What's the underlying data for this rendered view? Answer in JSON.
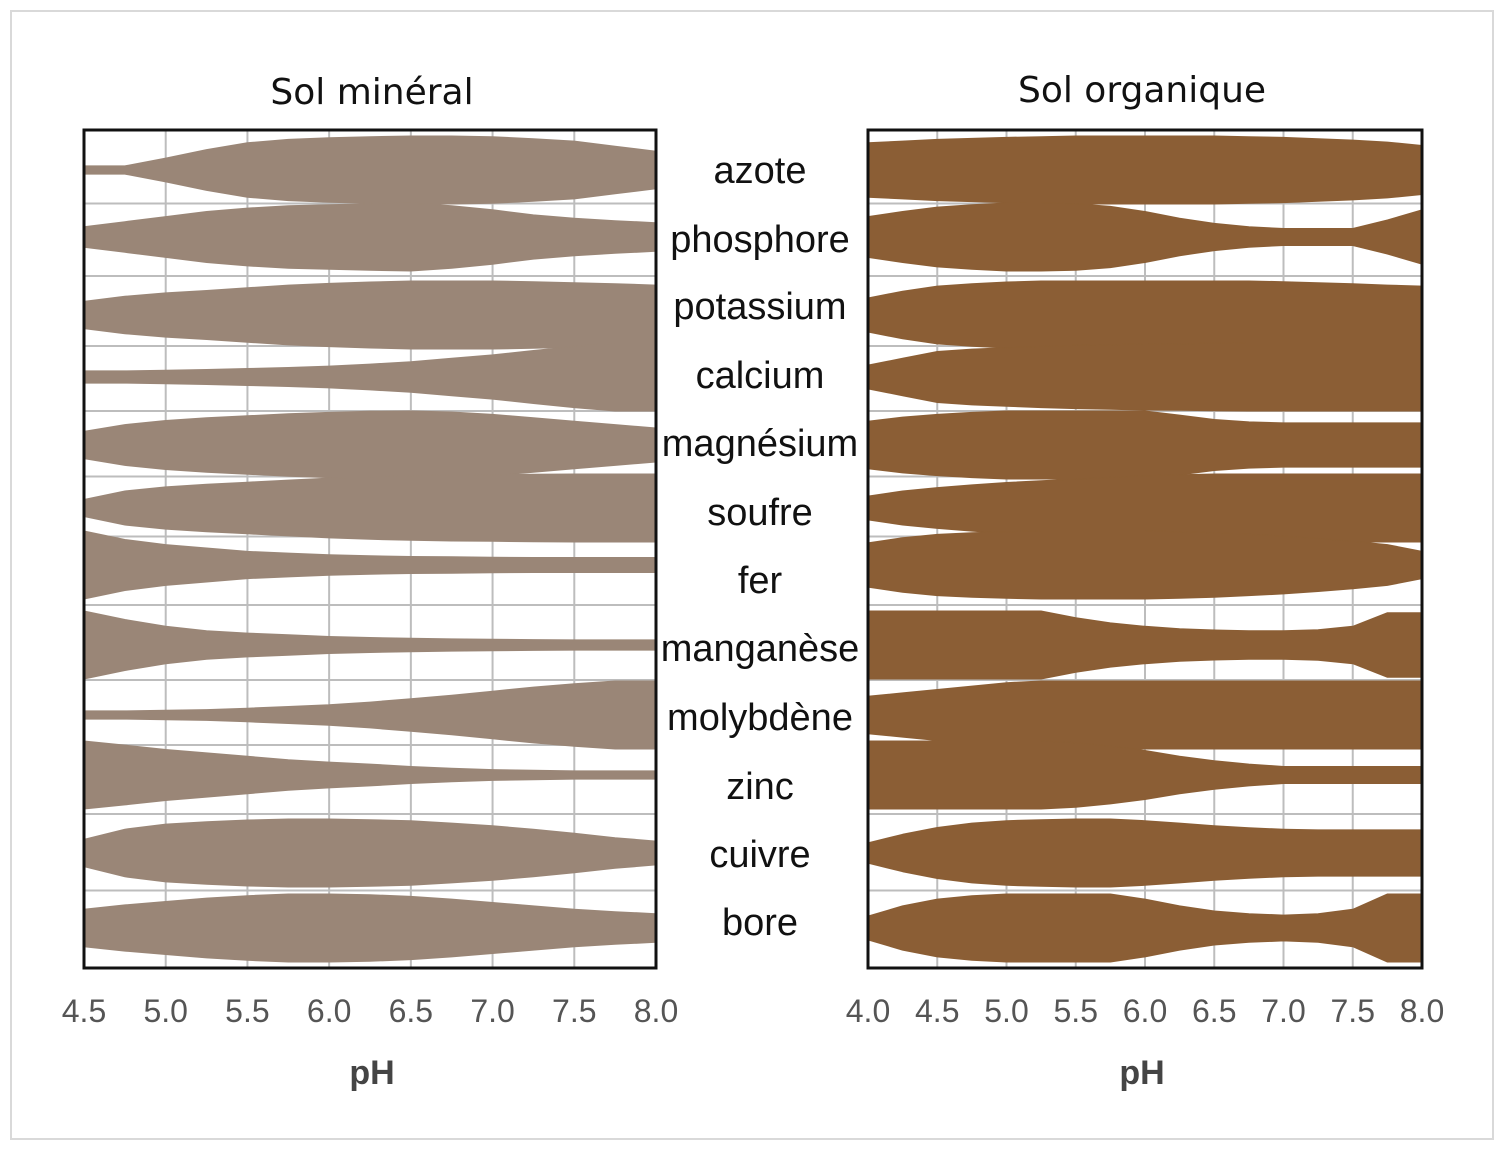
{
  "chart_data": [
    {
      "type": "area",
      "title": "Sol minéral",
      "xlabel": "pH",
      "ylabel": "",
      "xlim": [
        4.5,
        8.0
      ],
      "x_ticks": [
        "4.5",
        "5.0",
        "5.5",
        "6.0",
        "6.5",
        "7.0",
        "7.5",
        "8.0"
      ],
      "grid": true,
      "color": "#9a8677",
      "x": [
        4.5,
        4.75,
        5.0,
        5.25,
        5.5,
        5.75,
        6.0,
        6.25,
        6.5,
        6.75,
        7.0,
        7.25,
        7.5,
        7.75,
        8.0
      ],
      "series": [
        {
          "name": "azote",
          "values": [
            0.12,
            0.12,
            0.35,
            0.6,
            0.8,
            0.9,
            0.95,
            0.98,
            1.0,
            1.0,
            0.98,
            0.92,
            0.85,
            0.7,
            0.55
          ]
        },
        {
          "name": "phosphore",
          "values": [
            0.3,
            0.45,
            0.6,
            0.75,
            0.85,
            0.92,
            0.95,
            0.98,
            1.0,
            0.92,
            0.8,
            0.65,
            0.55,
            0.48,
            0.42
          ]
        },
        {
          "name": "potassium",
          "values": [
            0.4,
            0.55,
            0.65,
            0.72,
            0.8,
            0.88,
            0.93,
            0.97,
            1.0,
            1.0,
            1.0,
            0.98,
            0.95,
            0.92,
            0.88
          ]
        },
        {
          "name": "calcium",
          "values": [
            0.18,
            0.18,
            0.2,
            0.22,
            0.25,
            0.28,
            0.32,
            0.38,
            0.45,
            0.55,
            0.65,
            0.78,
            0.9,
            1.0,
            1.0
          ]
        },
        {
          "name": "magnésium",
          "values": [
            0.4,
            0.6,
            0.72,
            0.8,
            0.86,
            0.92,
            0.96,
            0.99,
            1.0,
            0.97,
            0.9,
            0.8,
            0.7,
            0.6,
            0.5
          ]
        },
        {
          "name": "soufre",
          "values": [
            0.25,
            0.5,
            0.62,
            0.7,
            0.76,
            0.82,
            0.88,
            0.92,
            0.95,
            0.97,
            0.98,
            0.99,
            1.0,
            1.0,
            1.0
          ]
        },
        {
          "name": "fer",
          "values": [
            1.0,
            0.75,
            0.6,
            0.5,
            0.4,
            0.35,
            0.3,
            0.27,
            0.25,
            0.24,
            0.23,
            0.22,
            0.22,
            0.22,
            0.22
          ]
        },
        {
          "name": "manganèse",
          "values": [
            1.0,
            0.75,
            0.55,
            0.42,
            0.35,
            0.3,
            0.25,
            0.22,
            0.2,
            0.18,
            0.17,
            0.16,
            0.15,
            0.15,
            0.15
          ]
        },
        {
          "name": "molybdène",
          "values": [
            0.12,
            0.12,
            0.14,
            0.16,
            0.2,
            0.25,
            0.3,
            0.38,
            0.48,
            0.58,
            0.7,
            0.82,
            0.92,
            1.0,
            1.0
          ]
        },
        {
          "name": "zinc",
          "values": [
            1.0,
            0.88,
            0.75,
            0.65,
            0.55,
            0.45,
            0.38,
            0.32,
            0.25,
            0.2,
            0.16,
            0.14,
            0.12,
            0.12,
            0.12
          ]
        },
        {
          "name": "cuivre",
          "values": [
            0.4,
            0.7,
            0.85,
            0.92,
            0.97,
            1.0,
            1.0,
            0.98,
            0.95,
            0.88,
            0.8,
            0.7,
            0.58,
            0.45,
            0.35
          ]
        },
        {
          "name": "bore",
          "values": [
            0.55,
            0.68,
            0.78,
            0.88,
            0.95,
            1.0,
            1.0,
            0.98,
            0.93,
            0.85,
            0.75,
            0.65,
            0.55,
            0.48,
            0.42
          ]
        }
      ]
    },
    {
      "type": "area",
      "title": "Sol organique",
      "xlabel": "pH",
      "ylabel": "",
      "xlim": [
        4.0,
        8.0
      ],
      "x_ticks": [
        "4.0",
        "4.5",
        "5.0",
        "5.5",
        "6.0",
        "6.5",
        "7.0",
        "7.5",
        "8.0"
      ],
      "grid": true,
      "color": "#8b5e35",
      "x": [
        4.0,
        4.25,
        4.5,
        4.75,
        5.0,
        5.25,
        5.5,
        5.75,
        6.0,
        6.25,
        6.5,
        6.75,
        7.0,
        7.25,
        7.5,
        7.75,
        8.0
      ],
      "series": [
        {
          "name": "azote",
          "values": [
            0.8,
            0.85,
            0.9,
            0.93,
            0.96,
            0.98,
            1.0,
            1.0,
            1.0,
            1.0,
            1.0,
            0.98,
            0.96,
            0.92,
            0.88,
            0.82,
            0.72
          ]
        },
        {
          "name": "phosphore",
          "values": [
            0.6,
            0.75,
            0.88,
            0.95,
            1.0,
            1.0,
            0.98,
            0.9,
            0.75,
            0.55,
            0.4,
            0.3,
            0.25,
            0.25,
            0.25,
            0.5,
            0.8
          ]
        },
        {
          "name": "potassium",
          "values": [
            0.5,
            0.7,
            0.85,
            0.92,
            0.97,
            1.0,
            1.0,
            1.0,
            1.0,
            1.0,
            1.0,
            1.0,
            0.98,
            0.95,
            0.92,
            0.88,
            0.85
          ]
        },
        {
          "name": "calcium",
          "values": [
            0.35,
            0.55,
            0.75,
            0.82,
            0.86,
            0.9,
            0.93,
            0.95,
            0.97,
            0.98,
            0.99,
            1.0,
            1.0,
            1.0,
            1.0,
            1.0,
            1.0
          ]
        },
        {
          "name": "magnésium",
          "values": [
            0.7,
            0.82,
            0.9,
            0.96,
            1.0,
            1.0,
            1.0,
            1.0,
            1.0,
            0.88,
            0.75,
            0.68,
            0.65,
            0.65,
            0.65,
            0.65,
            0.65
          ]
        },
        {
          "name": "soufre",
          "values": [
            0.35,
            0.5,
            0.6,
            0.68,
            0.75,
            0.8,
            0.85,
            0.9,
            0.95,
            0.98,
            1.0,
            1.0,
            1.0,
            1.0,
            1.0,
            1.0,
            1.0
          ]
        },
        {
          "name": "fer",
          "values": [
            0.65,
            0.8,
            0.9,
            0.95,
            0.98,
            1.0,
            1.0,
            1.0,
            1.0,
            0.98,
            0.95,
            0.9,
            0.85,
            0.78,
            0.7,
            0.6,
            0.4
          ]
        },
        {
          "name": "manganèse",
          "values": [
            1.0,
            1.0,
            1.0,
            1.0,
            1.0,
            1.0,
            0.8,
            0.65,
            0.55,
            0.48,
            0.44,
            0.42,
            0.42,
            0.45,
            0.55,
            0.95,
            0.95
          ]
        },
        {
          "name": "molybdène",
          "values": [
            0.55,
            0.65,
            0.75,
            0.85,
            0.95,
            1.0,
            1.0,
            1.0,
            1.0,
            1.0,
            1.0,
            1.0,
            1.0,
            1.0,
            1.0,
            1.0,
            1.0
          ]
        },
        {
          "name": "zinc",
          "values": [
            1.0,
            1.0,
            1.0,
            1.0,
            1.0,
            1.0,
            0.95,
            0.85,
            0.72,
            0.55,
            0.42,
            0.32,
            0.25,
            0.25,
            0.25,
            0.25,
            0.25
          ]
        },
        {
          "name": "cuivre",
          "values": [
            0.3,
            0.55,
            0.75,
            0.88,
            0.95,
            0.98,
            1.0,
            1.0,
            0.95,
            0.88,
            0.8,
            0.74,
            0.7,
            0.68,
            0.68,
            0.68,
            0.68
          ]
        },
        {
          "name": "bore",
          "values": [
            0.35,
            0.65,
            0.85,
            0.95,
            1.0,
            1.0,
            1.0,
            1.0,
            0.85,
            0.65,
            0.5,
            0.42,
            0.38,
            0.42,
            0.55,
            1.0,
            1.0
          ]
        }
      ]
    }
  ],
  "nutrients": [
    "azote",
    "phosphore",
    "potassium",
    "calcium",
    "magnésium",
    "soufre",
    "fer",
    "manganèse",
    "molybdène",
    "zinc",
    "cuivre",
    "bore"
  ]
}
